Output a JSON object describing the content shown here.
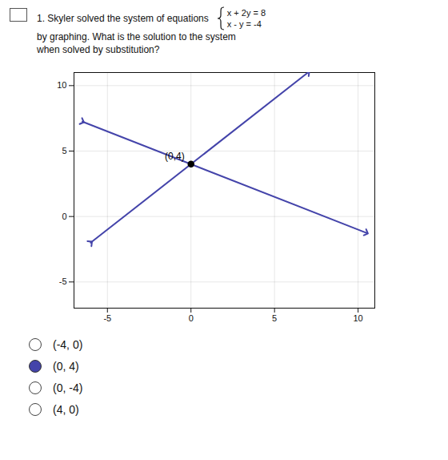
{
  "chart_data": {
    "type": "line",
    "title": [
      "1. Skyler solved the system of equations",
      "by graphing. What is the solution to the system",
      "when solved by substitution?"
    ],
    "xlim": [
      -7,
      11
    ],
    "ylim": [
      -7,
      11
    ],
    "xticks": [
      -5,
      0,
      5,
      10
    ],
    "yticks": [
      -5,
      0,
      5,
      10
    ],
    "grid": true,
    "series": [
      {
        "name": "x + 2y = 8",
        "color": "#4444aa",
        "x": [
          -6.5,
          10.5
        ],
        "values": [
          7.25,
          -1.25
        ],
        "marker": "arrow"
      },
      {
        "name": "x - y = -4",
        "color": "#4444aa",
        "x": [
          -6.0,
          7.0
        ],
        "values": [
          -2.0,
          11.0
        ],
        "marker": "arrow"
      }
    ],
    "annotations": [
      {
        "text": "(0,4)",
        "x": 0,
        "y": 4,
        "marker": "dot",
        "color": "#000000"
      },
      {
        "text": "(-4, 0)",
        "marker": "circle"
      },
      {
        "text": "(0, 4)",
        "marker": "disc",
        "color": "#4444aa"
      },
      {
        "text": "(0, -4)",
        "marker": "circle"
      },
      {
        "text": "(4, 0)",
        "marker": "circle"
      }
    ]
  }
}
